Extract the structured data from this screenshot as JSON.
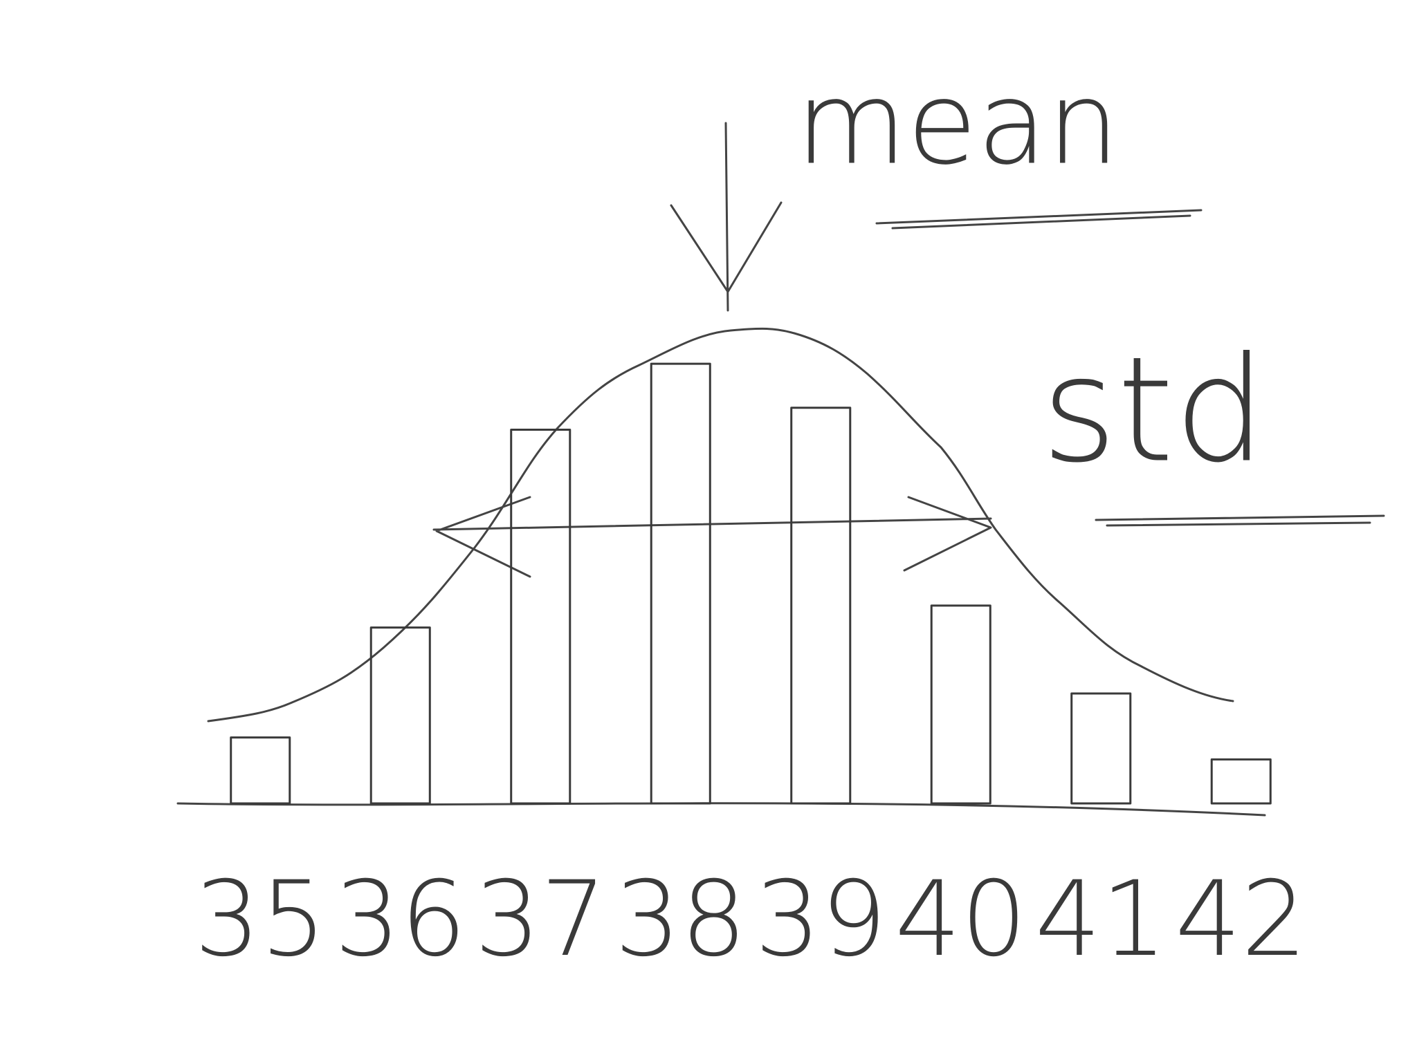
{
  "chart_data": {
    "type": "bar",
    "annotations": {
      "mean": "mean",
      "std": "std"
    },
    "categories": [
      "35",
      "36",
      "37",
      "38",
      "39",
      "40",
      "41",
      "42"
    ],
    "values": [
      1.5,
      4,
      8.5,
      10,
      9,
      4.5,
      2.5,
      1
    ],
    "color": "#3a3a3a",
    "ylim": [
      0,
      12
    ]
  }
}
